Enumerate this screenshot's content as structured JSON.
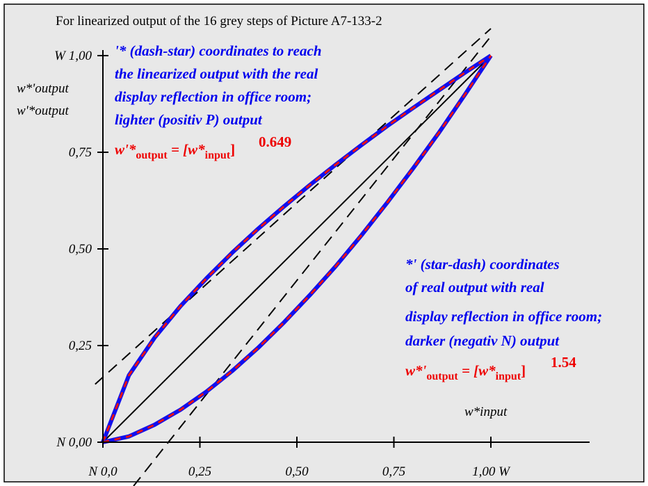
{
  "chart_data": {
    "type": "line",
    "title": "For linearized output of the 16 grey steps of Picture A7-133-2",
    "xlabel": "w*input",
    "ylabel_lines": [
      "w*'output",
      "w'*output"
    ],
    "xlim": [
      0,
      1
    ],
    "ylim": [
      0,
      1
    ],
    "x_ticks": [
      {
        "v": 0,
        "label": "N  0,0"
      },
      {
        "v": 0.25,
        "label": "0,25"
      },
      {
        "v": 0.5,
        "label": "0,50"
      },
      {
        "v": 0.75,
        "label": "0,75"
      },
      {
        "v": 1,
        "label": "1,00  W"
      }
    ],
    "y_ticks": [
      {
        "v": 0,
        "label": "N 0,00"
      },
      {
        "v": 0.25,
        "label": "0,25"
      },
      {
        "v": 0.5,
        "label": "0,50"
      },
      {
        "v": 0.75,
        "label": "0,75"
      },
      {
        "v": 1,
        "label": "W 1,00"
      }
    ],
    "background": "#e8e8e8",
    "annotation_color": "#0000ee",
    "formula_color": "#ee0000",
    "ann_upper": [
      "'* (dash-star) coordinates to reach",
      "the linearized output with the real",
      "display reflection in office room;",
      "lighter (positiv P) output"
    ],
    "ann_lower": [
      "*' (star-dash) coordinates",
      "of real output with real",
      "display reflection in office room;",
      "darker (negativ N) output"
    ],
    "formula_upper": {
      "lhs": "w'*",
      "lhs_sub": "output",
      "eq": " = [w*",
      "rhs_sub": "input",
      "close": "]",
      "exp": "0.649"
    },
    "formula_lower": {
      "lhs": "w*'",
      "lhs_sub": "output",
      "eq": " = [w*",
      "rhs_sub": "input",
      "close": "]",
      "exp": "1.54"
    },
    "series": [
      {
        "style": "solid-black",
        "x": [
          0,
          1
        ],
        "y": [
          0,
          1
        ]
      },
      {
        "style": "dashed-black",
        "x": [
          -0.02,
          1
        ],
        "y": [
          0.15,
          1.07
        ]
      },
      {
        "style": "dashed-black",
        "x": [
          0.05,
          1
        ],
        "y": [
          -0.15,
          1.05
        ]
      },
      {
        "style": "red-blue-dashed",
        "x": [
          0,
          0.067,
          0.133,
          0.2,
          0.267,
          0.333,
          0.4,
          0.467,
          0.533,
          0.6,
          0.667,
          0.733,
          0.8,
          0.867,
          0.933,
          1.0
        ],
        "y": [
          0,
          0.173,
          0.27,
          0.352,
          0.424,
          0.49,
          0.552,
          0.61,
          0.665,
          0.718,
          0.769,
          0.818,
          0.865,
          0.911,
          0.956,
          1.0
        ]
      },
      {
        "style": "red-blue-dashed",
        "x": [
          0,
          0.067,
          0.133,
          0.2,
          0.267,
          0.333,
          0.4,
          0.467,
          0.533,
          0.6,
          0.667,
          0.733,
          0.8,
          0.867,
          0.933,
          1.0
        ],
        "y": [
          0,
          0.015,
          0.045,
          0.084,
          0.131,
          0.184,
          0.244,
          0.31,
          0.38,
          0.455,
          0.536,
          0.62,
          0.709,
          0.802,
          0.899,
          1.0
        ]
      }
    ]
  }
}
